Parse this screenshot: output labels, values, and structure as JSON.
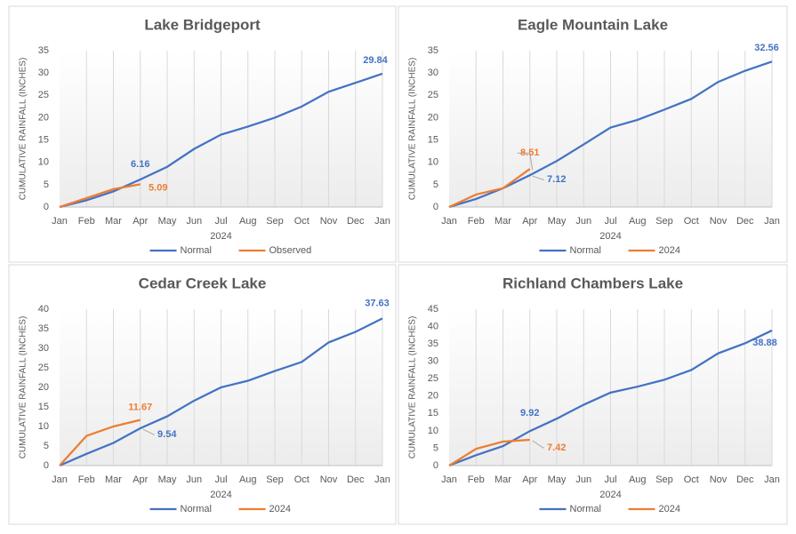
{
  "chart_data": [
    {
      "type": "line",
      "title": "Lake Bridgeport",
      "x_label": "2024",
      "y_label": "CUMULATIVE RAINFALL (INCHES)",
      "categories": [
        "Jan",
        "Feb",
        "Mar",
        "Apr",
        "May",
        "Jun",
        "Jul",
        "Aug",
        "Sep",
        "Oct",
        "Nov",
        "Dec",
        "Jan"
      ],
      "ylim": [
        0,
        35
      ],
      "yticks": [
        0,
        5,
        10,
        15,
        20,
        25,
        30,
        35
      ],
      "legend": "bottom",
      "series": [
        {
          "name": "Normal",
          "color": "#4472c4",
          "values": [
            0,
            1.5,
            3.5,
            6.16,
            9,
            13,
            16.2,
            18,
            20,
            22.5,
            25.8,
            27.8,
            29.84
          ],
          "value_labels": [
            null,
            null,
            null,
            "6.16",
            null,
            null,
            null,
            null,
            null,
            null,
            null,
            null,
            "29.84"
          ]
        },
        {
          "name": "Observed",
          "color": "#ed7d31",
          "values": [
            0,
            2,
            4,
            5.09,
            null,
            null,
            null,
            null,
            null,
            null,
            null,
            null,
            null
          ],
          "value_labels": [
            null,
            null,
            null,
            "5.09",
            null,
            null,
            null,
            null,
            null,
            null,
            null,
            null,
            null
          ]
        }
      ]
    },
    {
      "type": "line",
      "title": "Eagle Mountain Lake",
      "x_label": "2024",
      "y_label": "CUMULATIVE RAINFALL (INCHES)",
      "categories": [
        "Jan",
        "Feb",
        "Mar",
        "Apr",
        "May",
        "Jun",
        "Jul",
        "Aug",
        "Sep",
        "Oct",
        "Nov",
        "Dec",
        "Jan"
      ],
      "ylim": [
        0,
        35
      ],
      "yticks": [
        0,
        5,
        10,
        15,
        20,
        25,
        30,
        35
      ],
      "legend": "bottom",
      "series": [
        {
          "name": "Normal",
          "color": "#4472c4",
          "values": [
            0,
            1.8,
            4.2,
            7.12,
            10.3,
            14,
            17.8,
            19.5,
            21.8,
            24.2,
            28,
            30.5,
            32.56
          ],
          "value_labels": [
            null,
            null,
            null,
            "7.12",
            null,
            null,
            null,
            null,
            null,
            null,
            null,
            null,
            "32.56"
          ]
        },
        {
          "name": "2024",
          "color": "#ed7d31",
          "values": [
            0,
            2.8,
            4.2,
            8.51,
            null,
            null,
            null,
            null,
            null,
            null,
            null,
            null,
            null
          ],
          "value_labels": [
            null,
            null,
            null,
            "8.51",
            null,
            null,
            null,
            null,
            null,
            null,
            null,
            null,
            null
          ]
        }
      ]
    },
    {
      "type": "line",
      "title": "Cedar Creek Lake",
      "x_label": "2024",
      "y_label": "CUMULATIVE RAINFALL (INCHES)",
      "categories": [
        "Jan",
        "Feb",
        "Mar",
        "Apr",
        "May",
        "Jun",
        "Jul",
        "Aug",
        "Sep",
        "Oct",
        "Nov",
        "Dec",
        "Jan"
      ],
      "ylim": [
        0,
        40
      ],
      "yticks": [
        0,
        5,
        10,
        15,
        20,
        25,
        30,
        35,
        40
      ],
      "legend": "bottom",
      "series": [
        {
          "name": "Normal",
          "color": "#4472c4",
          "values": [
            0,
            3,
            5.8,
            9.54,
            12.6,
            16.6,
            20,
            21.7,
            24.2,
            26.5,
            31.5,
            34.2,
            37.63
          ],
          "value_labels": [
            null,
            null,
            null,
            "9.54",
            null,
            null,
            null,
            null,
            null,
            null,
            null,
            null,
            "37.63"
          ]
        },
        {
          "name": "2024",
          "color": "#ed7d31",
          "values": [
            0,
            7.6,
            10,
            11.67,
            null,
            null,
            null,
            null,
            null,
            null,
            null,
            null,
            null
          ],
          "value_labels": [
            null,
            null,
            null,
            "11.67",
            null,
            null,
            null,
            null,
            null,
            null,
            null,
            null,
            null
          ]
        }
      ]
    },
    {
      "type": "line",
      "title": "Richland Chambers Lake",
      "x_label": "2024",
      "y_label": "CUMULATIVE RAINFALL (INCHES)",
      "categories": [
        "Jan",
        "Feb",
        "Mar",
        "Apr",
        "May",
        "Jun",
        "Jul",
        "Aug",
        "Sep",
        "Oct",
        "Nov",
        "Dec",
        "Jan"
      ],
      "ylim": [
        0,
        45
      ],
      "yticks": [
        0,
        5,
        10,
        15,
        20,
        25,
        30,
        35,
        40,
        45
      ],
      "legend": "bottom",
      "series": [
        {
          "name": "Normal",
          "color": "#4472c4",
          "values": [
            0,
            3,
            5.6,
            9.92,
            13.5,
            17.5,
            21,
            22.7,
            24.7,
            27.5,
            32.3,
            35.2,
            38.88
          ],
          "value_labels": [
            null,
            null,
            null,
            "9.92",
            null,
            null,
            null,
            null,
            null,
            null,
            null,
            null,
            "38.88"
          ]
        },
        {
          "name": "2024",
          "color": "#ed7d31",
          "values": [
            0,
            4.8,
            6.9,
            7.42,
            null,
            null,
            null,
            null,
            null,
            null,
            null,
            null,
            null
          ],
          "value_labels": [
            null,
            null,
            null,
            "7.42",
            null,
            null,
            null,
            null,
            null,
            null,
            null,
            null,
            null
          ]
        }
      ]
    }
  ]
}
